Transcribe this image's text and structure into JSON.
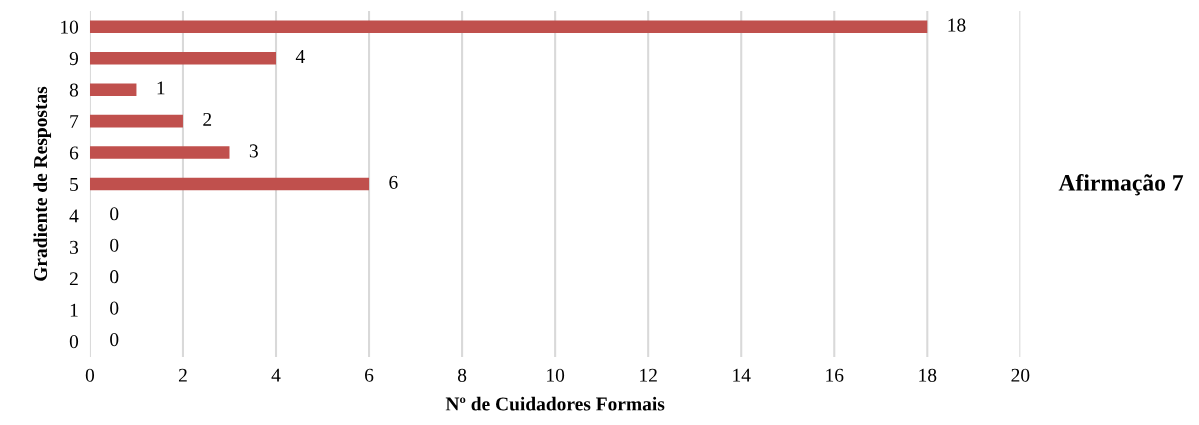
{
  "chart_data": {
    "type": "bar",
    "orientation": "horizontal",
    "title": "Afirmação 7",
    "xlabel": "Nº de Cuidadores Formais",
    "ylabel": "Gradiente de Respostas",
    "categories": [
      "10",
      "9",
      "8",
      "7",
      "6",
      "5",
      "4",
      "3",
      "2",
      "1",
      "0"
    ],
    "values": [
      18,
      4,
      1,
      2,
      3,
      6,
      0,
      0,
      0,
      0,
      0
    ],
    "color": "#c0504d",
    "xlim": [
      0,
      20
    ],
    "xticks": [
      0,
      2,
      4,
      6,
      8,
      10,
      12,
      14,
      16,
      18,
      20
    ],
    "grid": "x",
    "data_labels": true
  }
}
